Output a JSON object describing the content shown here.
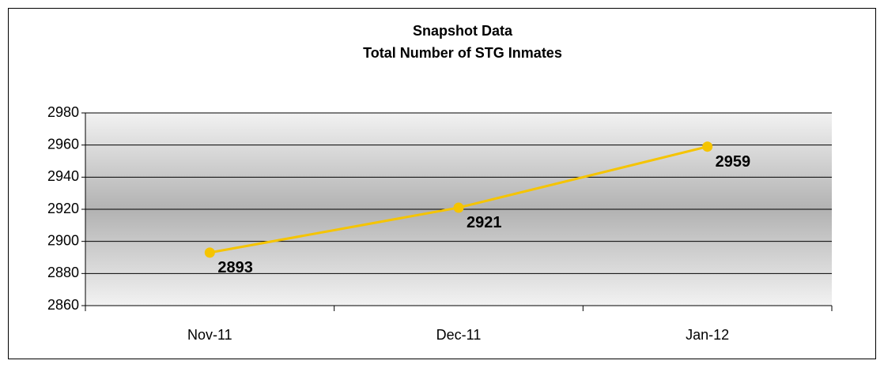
{
  "chart_data": {
    "type": "line",
    "title": "Snapshot Data",
    "subtitle": "Total Number of STG Inmates",
    "categories": [
      "Nov-11",
      "Dec-11",
      "Jan-12"
    ],
    "series": [
      {
        "name": "Total Number of STG Inmates",
        "color": "#f5c400",
        "values": [
          2893,
          2921,
          2959
        ]
      }
    ],
    "ylim": [
      2860,
      2980
    ],
    "yticks": [
      2860,
      2880,
      2900,
      2920,
      2940,
      2960,
      2980
    ],
    "grid": true
  }
}
